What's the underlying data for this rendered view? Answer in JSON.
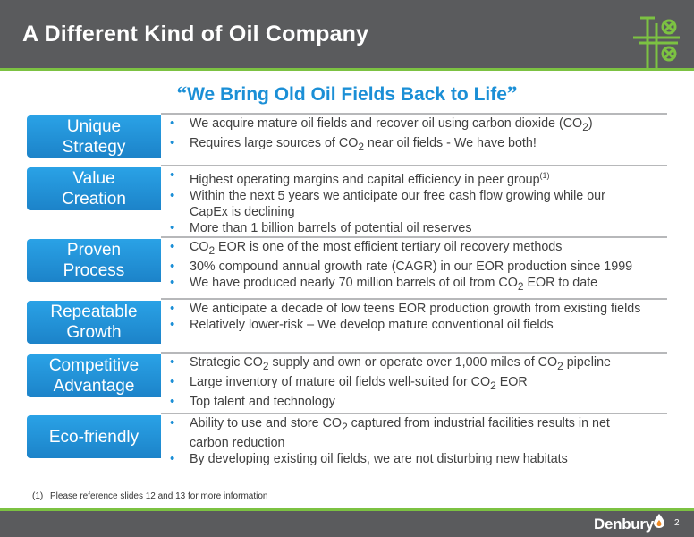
{
  "header": {
    "title": "A Different Kind of Oil Company"
  },
  "subtitle": {
    "open_quote": "“",
    "text": "We Bring Old Oil Fields Back to Life",
    "close_quote": "”"
  },
  "rows": [
    {
      "label_lines": [
        "Unique",
        "Strategy"
      ],
      "bullets": [
        {
          "before": "We acquire mature oil fields and recover oil using carbon dioxide (CO",
          "sub": "2",
          "after": ")"
        },
        {
          "before": "Requires large sources of CO",
          "sub": "2",
          "after": " near oil fields - We have both!"
        }
      ]
    },
    {
      "label_lines": [
        "Value",
        "Creation"
      ],
      "bullets": [
        {
          "before": "Highest operating margins and capital efficiency in peer group",
          "sup": "(1)"
        },
        {
          "before": "Within the next 5 years we anticipate our free cash flow growing while our",
          "cont": "CapEx is declining"
        },
        {
          "before": "More than 1 billion barrels of potential oil reserves"
        }
      ]
    },
    {
      "label_lines": [
        "Proven",
        "Process"
      ],
      "bullets": [
        {
          "before": "CO",
          "sub": "2",
          "after": " EOR is one of the most efficient tertiary oil recovery methods"
        },
        {
          "before": "30% compound annual growth rate (CAGR) in our EOR production since 1999"
        },
        {
          "before": "We have produced nearly 70 million barrels of oil from CO",
          "sub": "2",
          "after": " EOR to date"
        }
      ]
    },
    {
      "label_lines": [
        "Repeatable",
        "Growth"
      ],
      "bullets": [
        {
          "before": "We anticipate a decade of low teens EOR production growth from existing fields"
        },
        {
          "before": "Relatively lower-risk – We develop mature conventional oil fields"
        }
      ]
    },
    {
      "label_lines": [
        "Competitive",
        "Advantage"
      ],
      "bullets": [
        {
          "before": "Strategic CO",
          "sub": "2",
          "mid": " supply and own or operate over 1,000 miles of CO",
          "sub2": "2",
          "after": " pipeline"
        },
        {
          "before": "Large inventory of mature oil fields well-suited for CO",
          "sub": "2",
          "after": " EOR"
        },
        {
          "before": "Top talent and technology"
        }
      ]
    },
    {
      "label_lines": [
        "Eco-friendly"
      ],
      "bullets": [
        {
          "before": "Ability to use and store CO",
          "sub": "2",
          "after": " captured from industrial facilities results in net",
          "cont": "carbon reduction"
        },
        {
          "before": "By developing existing oil fields, we are not disturbing new habitats"
        }
      ]
    }
  ],
  "footnote": {
    "num": "(1)",
    "text": "Please reference slides 12 and 13 for more information"
  },
  "footer": {
    "brand": "Denbury",
    "page": "2"
  },
  "colors": {
    "header": "#5a5b5d",
    "accent_green": "#7cc242",
    "accent_blue": "#1b8fd6",
    "label_blue": "#1c83c9"
  },
  "icons": {
    "logo": "oil-wellhead-icon",
    "brand_mark": "drop-flame-icon",
    "bullet": "bullet-dot-icon"
  }
}
